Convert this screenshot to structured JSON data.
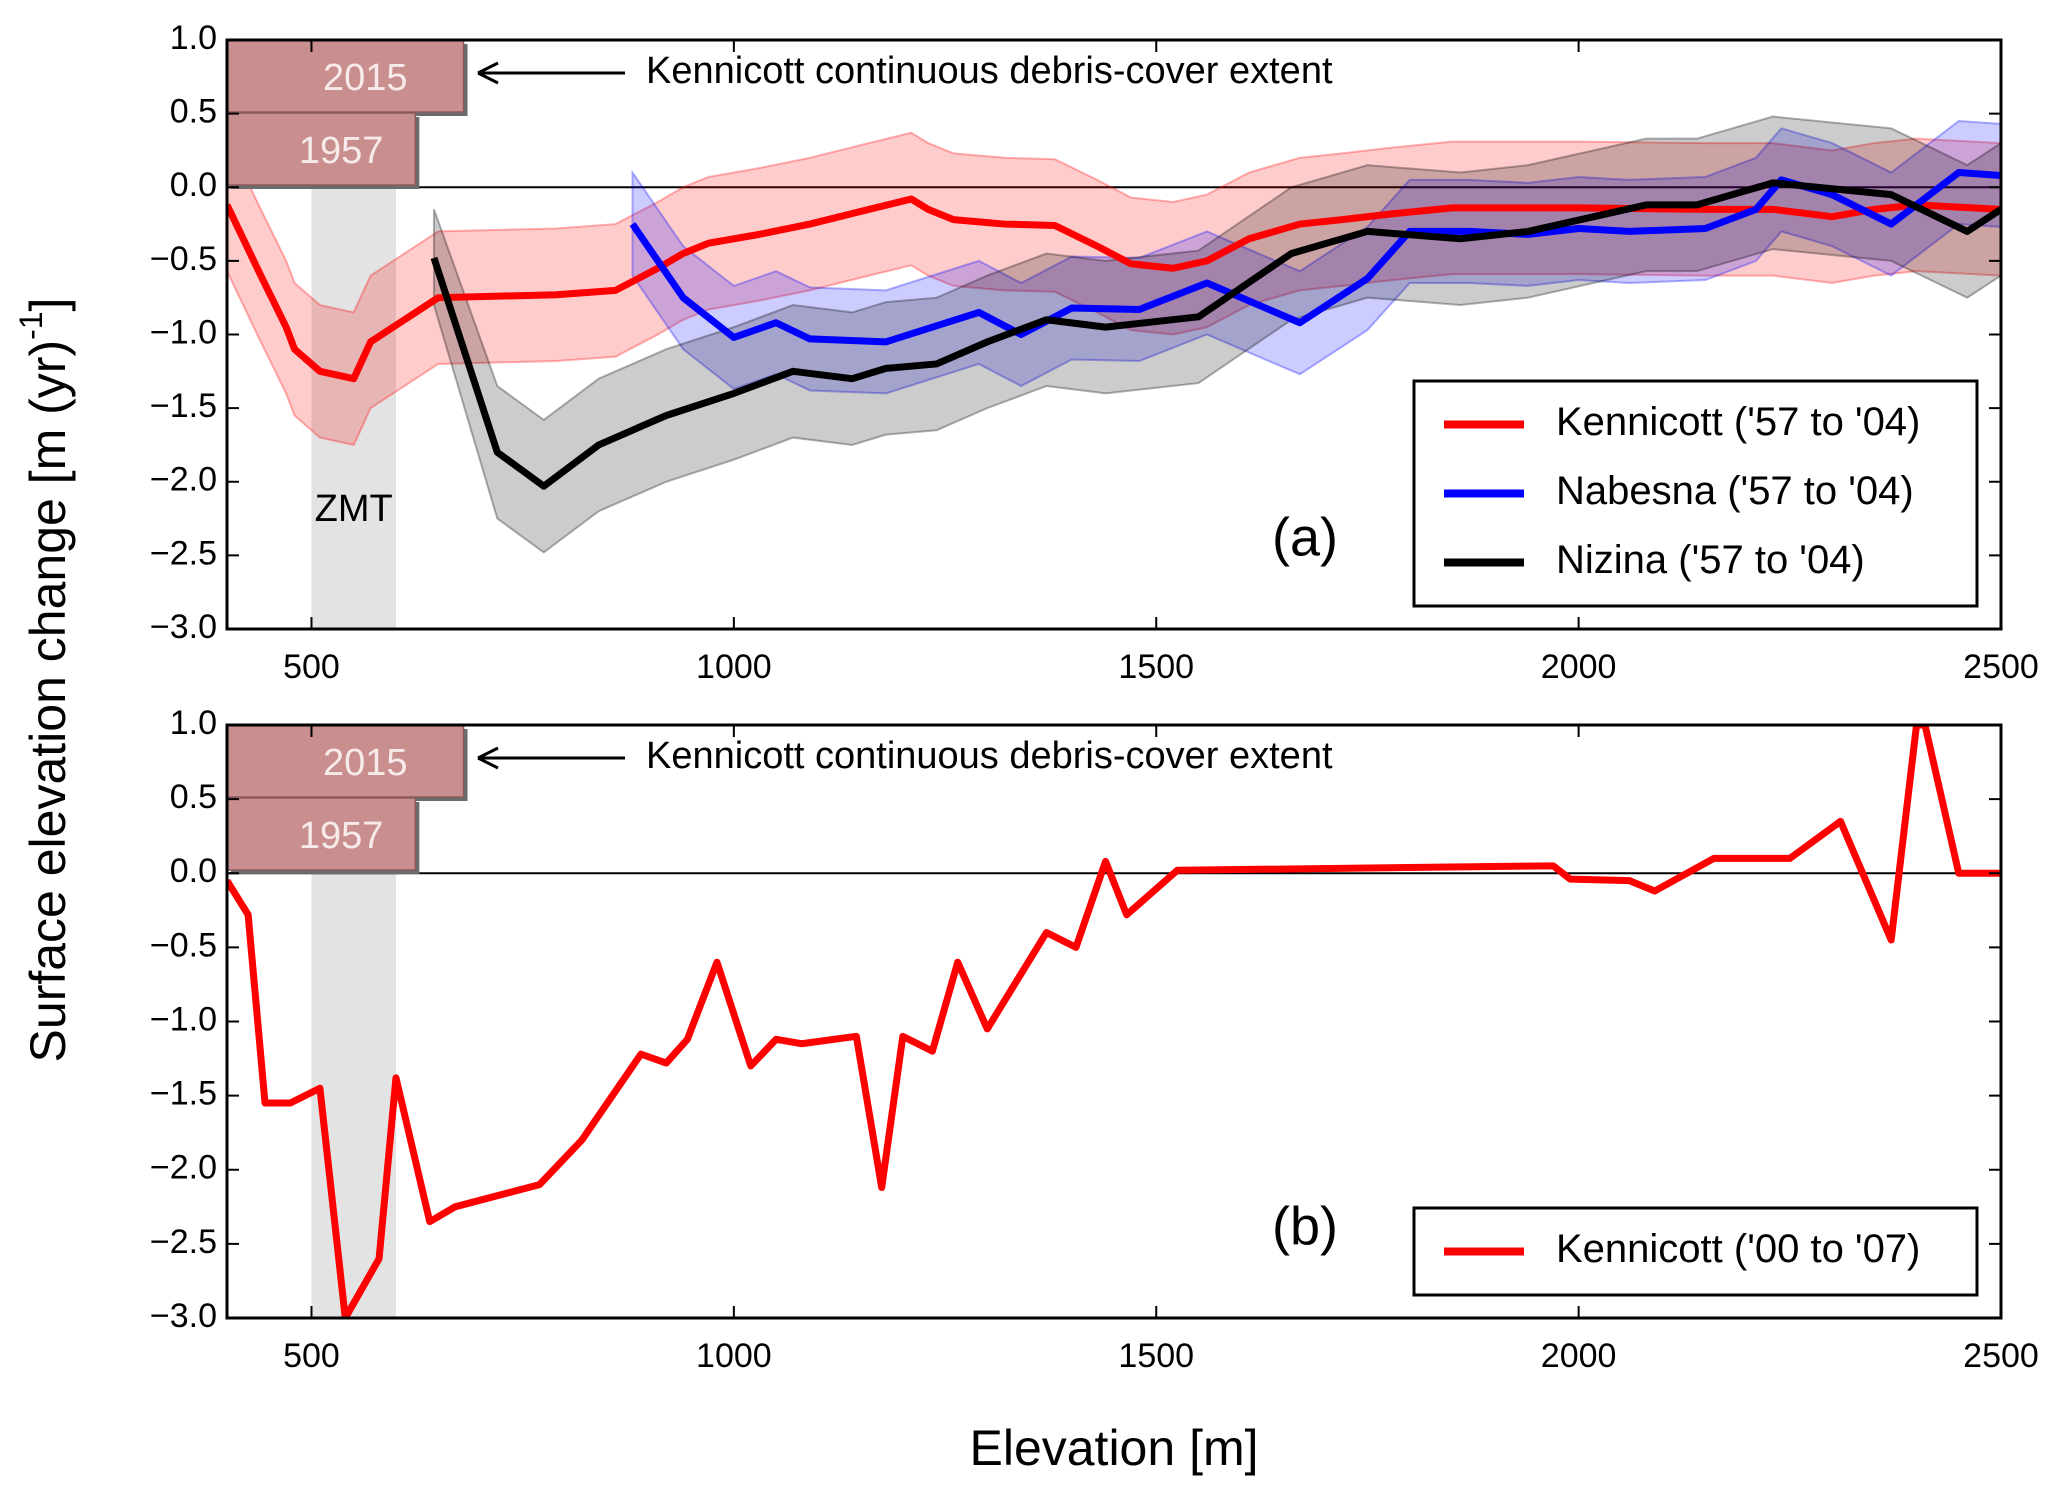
{
  "ylabel": {
    "text": "Surface elevation change [m (yr)",
    "sup": "-1",
    "end": "]"
  },
  "xlabel": "Elevation [m]",
  "chart_data": [
    {
      "type": "line",
      "label": "(a)",
      "xlim": [
        400,
        2500
      ],
      "ylim": [
        -3,
        1
      ],
      "xticks": [
        500,
        1000,
        1500,
        2000,
        2500
      ],
      "yticks": [
        {
          "value": -3,
          "label": "−3.0"
        },
        {
          "value": -2.5,
          "label": "−2.5"
        },
        {
          "value": -2,
          "label": "−2.0"
        },
        {
          "value": -1.5,
          "label": "−1.5"
        },
        {
          "value": -1,
          "label": "−1.0"
        },
        {
          "value": -0.5,
          "label": "−0.5"
        },
        {
          "value": 0,
          "label": "0.0"
        },
        {
          "value": 0.5,
          "label": "0.5"
        },
        {
          "value": 1,
          "label": "1.0"
        }
      ],
      "legend": "lower right",
      "shade": {
        "label": "ZMT",
        "xrange": [
          500,
          600
        ]
      },
      "debris_extent": [
        {
          "label": "2015",
          "value": 680
        },
        {
          "label": "1957",
          "value": 623
        }
      ],
      "annotation": "Kennicott continuous debris-cover extent",
      "series": [
        {
          "name": "Kennicott ('57 to '04)",
          "color": "#ff0000",
          "x": [
            400,
            440,
            470,
            480,
            510,
            550,
            570,
            650,
            790,
            860,
            910,
            940,
            970,
            1030,
            1090,
            1160,
            1210,
            1230,
            1260,
            1320,
            1380,
            1430,
            1470,
            1520,
            1560,
            1610,
            1670,
            1720,
            1780,
            1850,
            2000,
            2150,
            2230,
            2300,
            2350,
            2400,
            2500
          ],
          "values": [
            -0.12,
            -0.6,
            -0.95,
            -1.1,
            -1.25,
            -1.3,
            -1.05,
            -0.75,
            -0.73,
            -0.7,
            -0.55,
            -0.45,
            -0.38,
            -0.32,
            -0.25,
            -0.15,
            -0.08,
            -0.15,
            -0.22,
            -0.25,
            -0.26,
            -0.4,
            -0.52,
            -0.55,
            -0.5,
            -0.35,
            -0.25,
            -0.22,
            -0.18,
            -0.14,
            -0.14,
            -0.15,
            -0.15,
            -0.2,
            -0.15,
            -0.12,
            -0.15
          ],
          "upper": [
            0.33,
            -0.15,
            -0.5,
            -0.65,
            -0.8,
            -0.85,
            -0.6,
            -0.3,
            -0.28,
            -0.25,
            -0.1,
            0,
            0.07,
            0.13,
            0.2,
            0.3,
            0.37,
            0.3,
            0.23,
            0.2,
            0.19,
            0.05,
            -0.07,
            -0.1,
            -0.05,
            0.1,
            0.2,
            0.23,
            0.27,
            0.31,
            0.31,
            0.3,
            0.3,
            0.25,
            0.3,
            0.33,
            0.3
          ],
          "lower": [
            -0.57,
            -1.05,
            -1.4,
            -1.55,
            -1.7,
            -1.75,
            -1.5,
            -1.2,
            -1.18,
            -1.15,
            -1.0,
            -0.9,
            -0.83,
            -0.77,
            -0.7,
            -0.6,
            -0.53,
            -0.6,
            -0.67,
            -0.7,
            -0.71,
            -0.85,
            -0.97,
            -1.0,
            -0.95,
            -0.8,
            -0.7,
            -0.67,
            -0.63,
            -0.59,
            -0.59,
            -0.6,
            -0.6,
            -0.65,
            -0.6,
            -0.57,
            -0.6
          ]
        },
        {
          "name": "Nabesna ('57 to '04)",
          "color": "#0000ff",
          "x": [
            880,
            940,
            1000,
            1050,
            1090,
            1180,
            1290,
            1340,
            1400,
            1480,
            1560,
            1670,
            1750,
            1800,
            1870,
            1940,
            2000,
            2060,
            2150,
            2210,
            2240,
            2300,
            2370,
            2450,
            2500
          ],
          "values": [
            -0.25,
            -0.75,
            -1.02,
            -0.92,
            -1.03,
            -1.05,
            -0.85,
            -1.0,
            -0.82,
            -0.83,
            -0.65,
            -0.92,
            -0.62,
            -0.3,
            -0.3,
            -0.32,
            -0.28,
            -0.3,
            -0.28,
            -0.15,
            0.05,
            -0.05,
            -0.25,
            0.1,
            0.08
          ],
          "upper": [
            0.1,
            -0.4,
            -0.67,
            -0.57,
            -0.68,
            -0.7,
            -0.5,
            -0.65,
            -0.47,
            -0.48,
            -0.3,
            -0.57,
            -0.27,
            0.05,
            0.05,
            0.03,
            0.07,
            0.05,
            0.07,
            0.2,
            0.4,
            0.3,
            0.1,
            0.45,
            0.43
          ],
          "lower": [
            -0.6,
            -1.1,
            -1.37,
            -1.27,
            -1.38,
            -1.4,
            -1.2,
            -1.35,
            -1.17,
            -1.18,
            -1.0,
            -1.27,
            -0.97,
            -0.65,
            -0.65,
            -0.67,
            -0.63,
            -0.65,
            -0.63,
            -0.5,
            -0.3,
            -0.4,
            -0.6,
            -0.25,
            -0.27
          ]
        },
        {
          "name": "Nizina ('57 to '04)",
          "color": "#000000",
          "x": [
            645,
            720,
            775,
            840,
            920,
            1000,
            1070,
            1140,
            1180,
            1240,
            1300,
            1370,
            1440,
            1550,
            1660,
            1750,
            1860,
            1940,
            2080,
            2140,
            2230,
            2370,
            2460,
            2500
          ],
          "values": [
            -0.48,
            -1.8,
            -2.03,
            -1.75,
            -1.55,
            -1.4,
            -1.25,
            -1.3,
            -1.23,
            -1.2,
            -1.05,
            -0.9,
            -0.95,
            -0.88,
            -0.45,
            -0.3,
            -0.35,
            -0.3,
            -0.12,
            -0.12,
            0.03,
            -0.05,
            -0.3,
            -0.15
          ],
          "upper": [
            -0.15,
            -1.35,
            -1.58,
            -1.3,
            -1.1,
            -0.95,
            -0.8,
            -0.85,
            -0.78,
            -0.75,
            -0.6,
            -0.45,
            -0.5,
            -0.43,
            0,
            0.15,
            0.1,
            0.15,
            0.33,
            0.33,
            0.48,
            0.4,
            0.15,
            0.3
          ],
          "lower": [
            -0.8,
            -2.25,
            -2.48,
            -2.2,
            -2.0,
            -1.85,
            -1.7,
            -1.75,
            -1.68,
            -1.65,
            -1.5,
            -1.35,
            -1.4,
            -1.33,
            -0.9,
            -0.75,
            -0.8,
            -0.75,
            -0.57,
            -0.57,
            -0.42,
            -0.5,
            -0.75,
            -0.6
          ]
        }
      ]
    },
    {
      "type": "line",
      "label": "(b)",
      "xlim": [
        400,
        2500
      ],
      "ylim": [
        -3,
        1
      ],
      "xticks": [
        500,
        1000,
        1500,
        2000,
        2500
      ],
      "yticks": [
        {
          "value": -3,
          "label": "−3.0"
        },
        {
          "value": -2.5,
          "label": "−2.5"
        },
        {
          "value": -2,
          "label": "−2.0"
        },
        {
          "value": -1.5,
          "label": "−1.5"
        },
        {
          "value": -1,
          "label": "−1.0"
        },
        {
          "value": -0.5,
          "label": "−0.5"
        },
        {
          "value": 0,
          "label": "0.0"
        },
        {
          "value": 0.5,
          "label": "0.5"
        },
        {
          "value": 1,
          "label": "1.0"
        }
      ],
      "legend": "lower right",
      "shade": {
        "xrange": [
          500,
          600
        ]
      },
      "debris_extent": [
        {
          "label": "2015",
          "value": 680
        },
        {
          "label": "1957",
          "value": 623
        }
      ],
      "annotation": "Kennicott continuous debris-cover extent",
      "series": [
        {
          "name": "Kennicott ('00 to '07)",
          "color": "#ff0000",
          "x": [
            400,
            425,
            445,
            475,
            510,
            540,
            580,
            600,
            640,
            670,
            770,
            820,
            890,
            920,
            945,
            980,
            1020,
            1050,
            1080,
            1145,
            1175,
            1200,
            1235,
            1265,
            1300,
            1370,
            1405,
            1440,
            1465,
            1525,
            1970,
            1990,
            2060,
            2090,
            2160,
            2250,
            2310,
            2370,
            2400,
            2410,
            2450,
            2500
          ],
          "values": [
            -0.05,
            -0.28,
            -1.55,
            -1.55,
            -1.45,
            -3.0,
            -2.6,
            -1.38,
            -2.35,
            -2.25,
            -2.1,
            -1.8,
            -1.22,
            -1.28,
            -1.12,
            -0.6,
            -1.3,
            -1.12,
            -1.15,
            -1.1,
            -2.12,
            -1.1,
            -1.2,
            -0.6,
            -1.05,
            -0.4,
            -0.5,
            0.08,
            -0.28,
            0.02,
            0.05,
            -0.04,
            -0.05,
            -0.12,
            0.1,
            0.1,
            0.35,
            -0.45,
            1.0,
            1.0,
            0.0,
            0.0
          ]
        }
      ]
    }
  ]
}
